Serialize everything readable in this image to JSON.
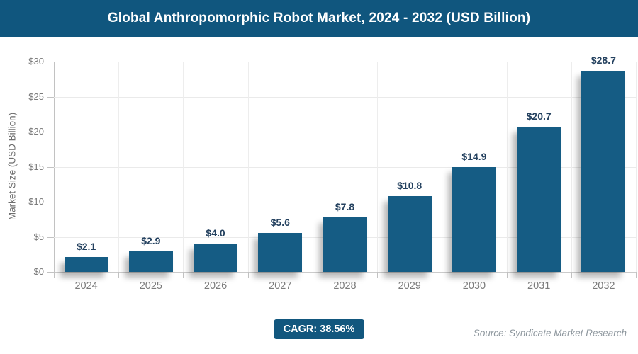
{
  "header": {
    "title": "Global Anthropomorphic Robot Market, 2024 - 2032 (USD Billion)"
  },
  "chart_data": {
    "type": "bar",
    "title": "Global Anthropomorphic Robot Market, 2024 - 2032 (USD Billion)",
    "categories": [
      "2024",
      "2025",
      "2026",
      "2027",
      "2028",
      "2029",
      "2030",
      "2031",
      "2032"
    ],
    "values": [
      2.1,
      2.9,
      4.0,
      5.6,
      7.8,
      10.8,
      14.9,
      20.7,
      28.7
    ],
    "value_labels": [
      "$2.1",
      "$2.9",
      "$4.0",
      "$5.6",
      "$7.8",
      "$10.8",
      "$14.9",
      "$20.7",
      "$28.7"
    ],
    "xlabel": "",
    "ylabel": "Market Size (USD Billion)",
    "ylim": [
      0,
      30
    ],
    "ytick_step": 5,
    "ytick_labels": [
      "$0",
      "$5",
      "$10",
      "$15",
      "$20",
      "$25",
      "$30"
    ],
    "grid": true,
    "legend": false,
    "bar_color": "#155C84"
  },
  "footer": {
    "cagr_label": "CAGR: 38.56%",
    "source": "Source: Syndicate Market Research"
  },
  "colors": {
    "header_bg": "#10567E",
    "bar": "#155C84",
    "badge_bg": "#12577E",
    "value_label_text": "#24415F",
    "axis_text": "#7B7B7B",
    "source_text": "#8E979E",
    "gridline": "#EAEAEA"
  }
}
